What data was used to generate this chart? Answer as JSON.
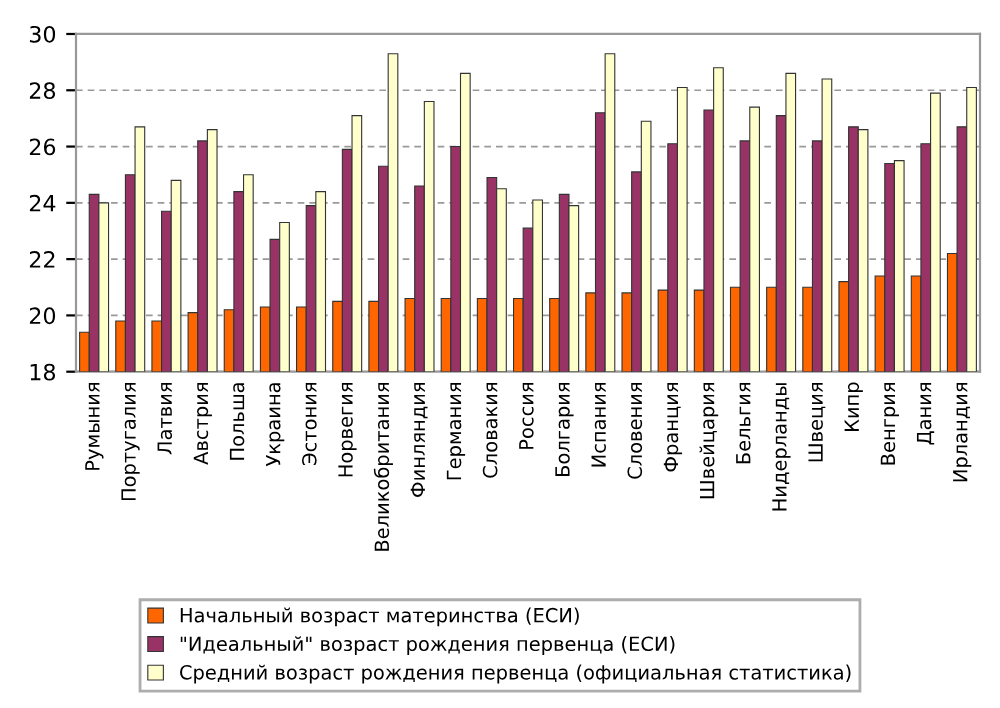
{
  "chart_data": {
    "type": "bar",
    "categories": [
      "Румыния",
      "Португалия",
      "Латвия",
      "Австрия",
      "Польша",
      "Украина",
      "Эстония",
      "Норвегия",
      "Великобритания",
      "Финляндия",
      "Германия",
      "Словакия",
      "Россия",
      "Болгария",
      "Испания",
      "Словения",
      "Франция",
      "Швейцария",
      "Бельгия",
      "Нидерланды",
      "Швеция",
      "Кипр",
      "Венгрия",
      "Дания",
      "Ирландия"
    ],
    "series": [
      {
        "name": "Начальный возраст материнства (ЕСИ)",
        "color": "#ff6600",
        "values": [
          19.4,
          19.8,
          19.8,
          20.1,
          20.2,
          20.3,
          20.3,
          20.5,
          20.5,
          20.6,
          20.6,
          20.6,
          20.6,
          20.6,
          20.8,
          20.8,
          20.9,
          20.9,
          21.0,
          21.0,
          21.0,
          21.2,
          21.4,
          21.4,
          22.2
        ]
      },
      {
        "name": "\"Идеальный\" возраст рождения первенца (ЕСИ)",
        "color": "#993366",
        "values": [
          24.3,
          25.0,
          23.7,
          26.2,
          24.4,
          22.7,
          23.9,
          25.9,
          25.3,
          24.6,
          26.0,
          24.9,
          23.1,
          24.3,
          27.2,
          25.1,
          26.1,
          27.3,
          26.2,
          27.1,
          26.2,
          26.7,
          25.4,
          26.1,
          26.7
        ]
      },
      {
        "name": "Средний возраст рождения первенца (официальная статистика)",
        "color": "#ffffcc",
        "values": [
          24.0,
          26.7,
          24.8,
          26.6,
          25.0,
          23.3,
          24.4,
          27.1,
          29.3,
          27.6,
          28.6,
          24.5,
          24.1,
          23.9,
          29.3,
          26.9,
          28.1,
          28.8,
          27.4,
          28.6,
          28.4,
          26.6,
          25.5,
          27.9,
          28.1
        ]
      }
    ],
    "ylim": [
      18,
      30
    ],
    "yticks": [
      18,
      20,
      22,
      24,
      26,
      28,
      30
    ],
    "grid": "y",
    "legend": "bottom"
  }
}
